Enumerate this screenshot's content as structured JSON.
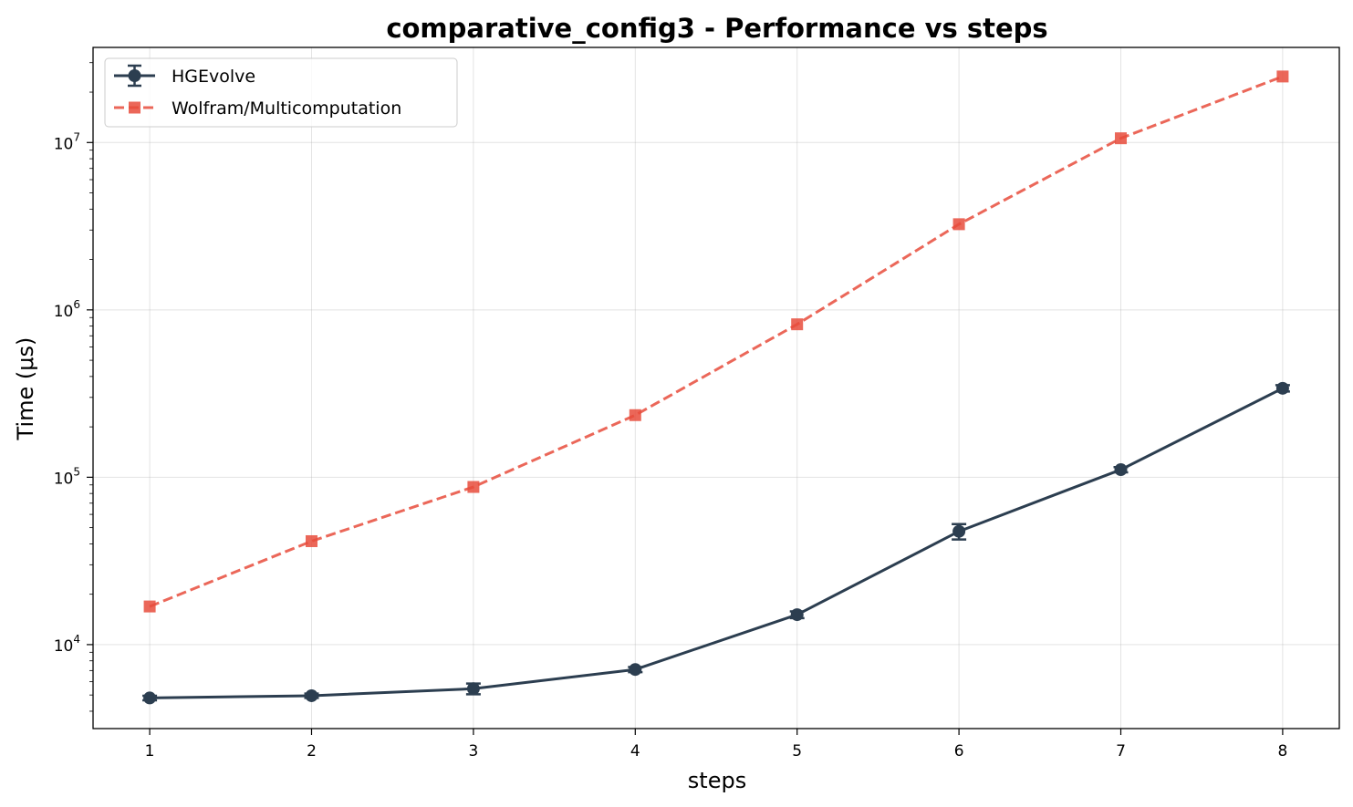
{
  "chart_data": {
    "type": "line",
    "title": "comparative_config3 - Performance vs steps",
    "xlabel": "steps",
    "ylabel": "Time (μs)",
    "x": [
      1,
      2,
      3,
      4,
      5,
      6,
      7,
      8
    ],
    "xlim": [
      0.65,
      8.35
    ],
    "ylim": [
      3150,
      37000000
    ],
    "yscale": "log",
    "yticks": [
      10000,
      100000,
      1000000,
      10000000
    ],
    "ytick_labels": [
      {
        "base": "10",
        "exp": "4"
      },
      {
        "base": "10",
        "exp": "5"
      },
      {
        "base": "10",
        "exp": "6"
      },
      {
        "base": "10",
        "exp": "7"
      }
    ],
    "xtick_labels": [
      "1",
      "2",
      "3",
      "4",
      "5",
      "6",
      "7",
      "8"
    ],
    "grid": true,
    "legend_position": "top-left",
    "series": [
      {
        "name": "HGEvolve",
        "values": [
          4800,
          4950,
          5450,
          7100,
          15100,
          47500,
          111000,
          340000
        ],
        "errors": [
          150,
          150,
          400,
          250,
          700,
          5000,
          4000,
          15000
        ],
        "color": "#2c3e50",
        "marker": "circle",
        "linestyle": "solid",
        "error_bars": true
      },
      {
        "name": "Wolfram/Multicomputation",
        "values": [
          16900,
          41500,
          87500,
          235000,
          820000,
          3250000,
          10600000,
          24800000
        ],
        "color": "#e74c3c",
        "marker": "square",
        "linestyle": "dashed",
        "error_bars": false
      }
    ]
  }
}
